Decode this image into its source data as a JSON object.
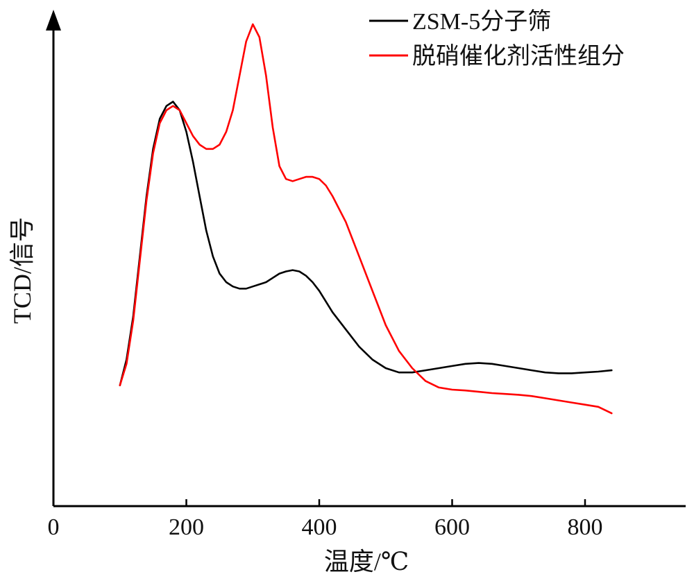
{
  "chart_data": {
    "type": "line",
    "title": "",
    "xlabel": "温度/℃",
    "ylabel": "TCD/信号",
    "xlim": [
      0,
      950
    ],
    "ylim": [
      0,
      1
    ],
    "x_ticks": [
      0,
      200,
      400,
      600,
      800
    ],
    "y_ticks": [],
    "grid": false,
    "legend": "top-right",
    "series": [
      {
        "name": "ZSM-5分子筛",
        "color": "#000000",
        "x": [
          100,
          110,
          120,
          130,
          140,
          150,
          160,
          170,
          180,
          190,
          200,
          210,
          220,
          230,
          240,
          250,
          260,
          270,
          280,
          290,
          300,
          310,
          320,
          330,
          340,
          350,
          360,
          370,
          380,
          390,
          400,
          410,
          420,
          440,
          460,
          480,
          500,
          520,
          540,
          560,
          580,
          600,
          620,
          640,
          660,
          680,
          700,
          720,
          740,
          760,
          780,
          800,
          820,
          840
        ],
        "y": [
          0.16,
          0.22,
          0.32,
          0.46,
          0.6,
          0.71,
          0.78,
          0.81,
          0.82,
          0.8,
          0.75,
          0.68,
          0.6,
          0.52,
          0.46,
          0.42,
          0.4,
          0.39,
          0.385,
          0.385,
          0.39,
          0.395,
          0.4,
          0.41,
          0.42,
          0.425,
          0.428,
          0.425,
          0.415,
          0.4,
          0.38,
          0.355,
          0.33,
          0.29,
          0.25,
          0.22,
          0.2,
          0.19,
          0.19,
          0.195,
          0.2,
          0.205,
          0.21,
          0.212,
          0.21,
          0.205,
          0.2,
          0.195,
          0.19,
          0.188,
          0.188,
          0.19,
          0.192,
          0.195
        ]
      },
      {
        "name": "脱硝催化剂活性组分",
        "color": "#ff0000",
        "x": [
          100,
          110,
          120,
          130,
          140,
          150,
          160,
          170,
          180,
          190,
          200,
          210,
          220,
          230,
          240,
          250,
          260,
          270,
          280,
          290,
          300,
          310,
          320,
          330,
          340,
          350,
          360,
          370,
          380,
          390,
          400,
          410,
          420,
          440,
          460,
          480,
          500,
          520,
          540,
          560,
          580,
          600,
          620,
          640,
          660,
          680,
          700,
          720,
          740,
          760,
          780,
          800,
          820,
          840
        ],
        "y": [
          0.16,
          0.21,
          0.31,
          0.45,
          0.59,
          0.7,
          0.77,
          0.8,
          0.81,
          0.8,
          0.77,
          0.74,
          0.72,
          0.71,
          0.71,
          0.72,
          0.75,
          0.8,
          0.88,
          0.96,
          1.0,
          0.97,
          0.88,
          0.76,
          0.67,
          0.64,
          0.635,
          0.64,
          0.645,
          0.645,
          0.64,
          0.625,
          0.6,
          0.54,
          0.46,
          0.38,
          0.3,
          0.24,
          0.2,
          0.17,
          0.155,
          0.15,
          0.148,
          0.145,
          0.142,
          0.14,
          0.138,
          0.135,
          0.13,
          0.125,
          0.12,
          0.115,
          0.11,
          0.095
        ]
      }
    ]
  }
}
